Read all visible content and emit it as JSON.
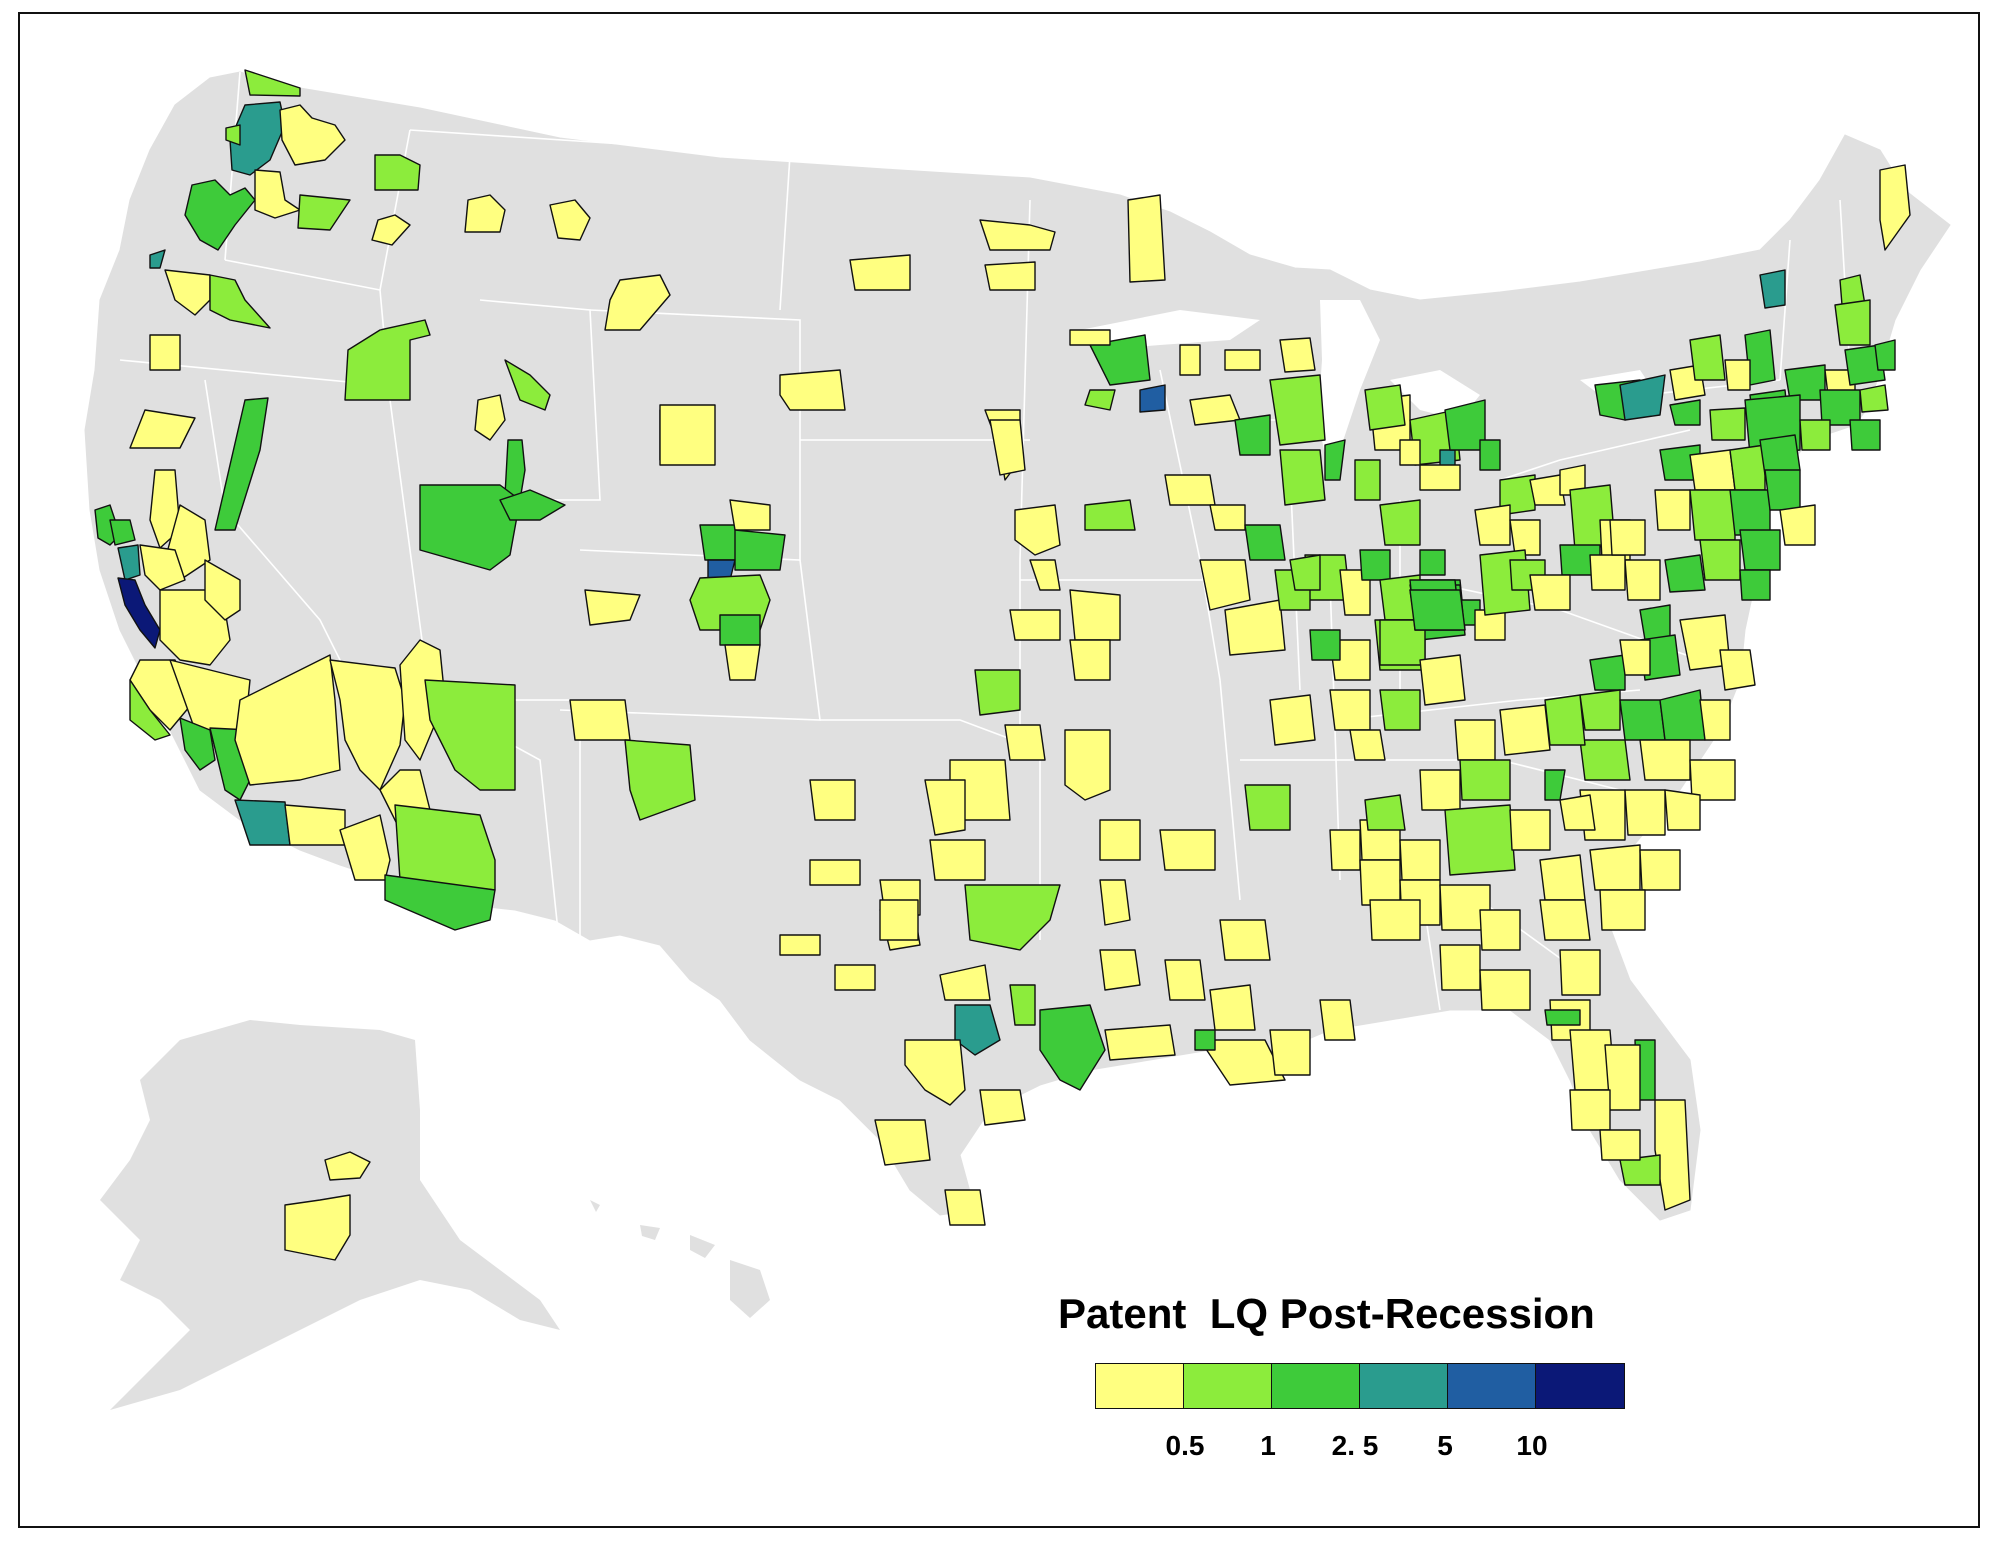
{
  "map": {
    "title": "Patent  LQ Post-Recession",
    "land_color": "#e0e0e0",
    "border_color": "#ffffff",
    "outline_color": "#111111"
  },
  "legend": {
    "classes": [
      {
        "color": "#ffff80"
      },
      {
        "color": "#8cec3c"
      },
      {
        "color": "#3ecb3a"
      },
      {
        "color": "#2a9c8e"
      },
      {
        "color": "#205ea2"
      },
      {
        "color": "#0b1877"
      }
    ],
    "ticks": [
      "0.5",
      "1",
      "2. 5",
      "5",
      "10"
    ]
  }
}
